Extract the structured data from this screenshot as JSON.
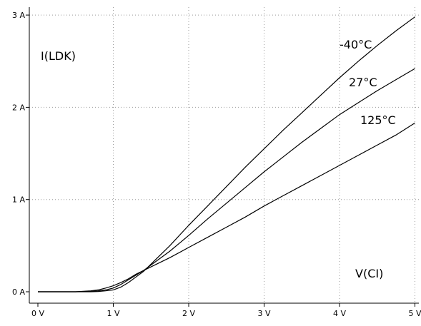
{
  "chart_data": {
    "type": "line",
    "title": "",
    "ylabel": "I(LDK)",
    "xlabel": "V(CI)",
    "xlim": [
      -0.1,
      5.05
    ],
    "ylim": [
      -0.1,
      3.0
    ],
    "x_ticks": [
      {
        "value": 0,
        "label": "0 V"
      },
      {
        "value": 1,
        "label": "1 V"
      },
      {
        "value": 2,
        "label": "2 V"
      },
      {
        "value": 3,
        "label": "3 V"
      },
      {
        "value": 4,
        "label": "4 V"
      },
      {
        "value": 5,
        "label": "5 V"
      }
    ],
    "y_ticks": [
      {
        "value": 0,
        "label": "0 A"
      },
      {
        "value": 1,
        "label": "1 A"
      },
      {
        "value": 2,
        "label": "2 A"
      },
      {
        "value": 3,
        "label": "3 A"
      }
    ],
    "grid": true,
    "x": [
      0,
      0.25,
      0.5,
      0.7,
      0.8,
      0.9,
      1.0,
      1.1,
      1.2,
      1.3,
      1.4,
      1.5,
      1.75,
      2.0,
      2.25,
      2.5,
      2.75,
      3.0,
      3.25,
      3.5,
      3.75,
      4.0,
      4.25,
      4.5,
      4.75,
      5.0
    ],
    "series": [
      {
        "name": "-40°C",
        "values": [
          0,
          0,
          0,
          0,
          0.003,
          0.01,
          0.02,
          0.05,
          0.1,
          0.16,
          0.22,
          0.3,
          0.5,
          0.72,
          0.93,
          1.14,
          1.35,
          1.55,
          1.75,
          1.94,
          2.13,
          2.32,
          2.5,
          2.67,
          2.83,
          2.98
        ]
      },
      {
        "name": "27°C",
        "values": [
          0,
          0,
          0,
          0.005,
          0.01,
          0.02,
          0.04,
          0.08,
          0.13,
          0.18,
          0.23,
          0.29,
          0.44,
          0.61,
          0.79,
          0.96,
          1.13,
          1.3,
          1.46,
          1.62,
          1.77,
          1.92,
          2.05,
          2.18,
          2.3,
          2.42
        ]
      },
      {
        "name": "125°C",
        "values": [
          0,
          0,
          0,
          0.01,
          0.02,
          0.04,
          0.065,
          0.1,
          0.14,
          0.19,
          0.23,
          0.27,
          0.37,
          0.48,
          0.59,
          0.7,
          0.81,
          0.93,
          1.04,
          1.15,
          1.26,
          1.37,
          1.48,
          1.59,
          1.7,
          1.83
        ]
      }
    ]
  }
}
